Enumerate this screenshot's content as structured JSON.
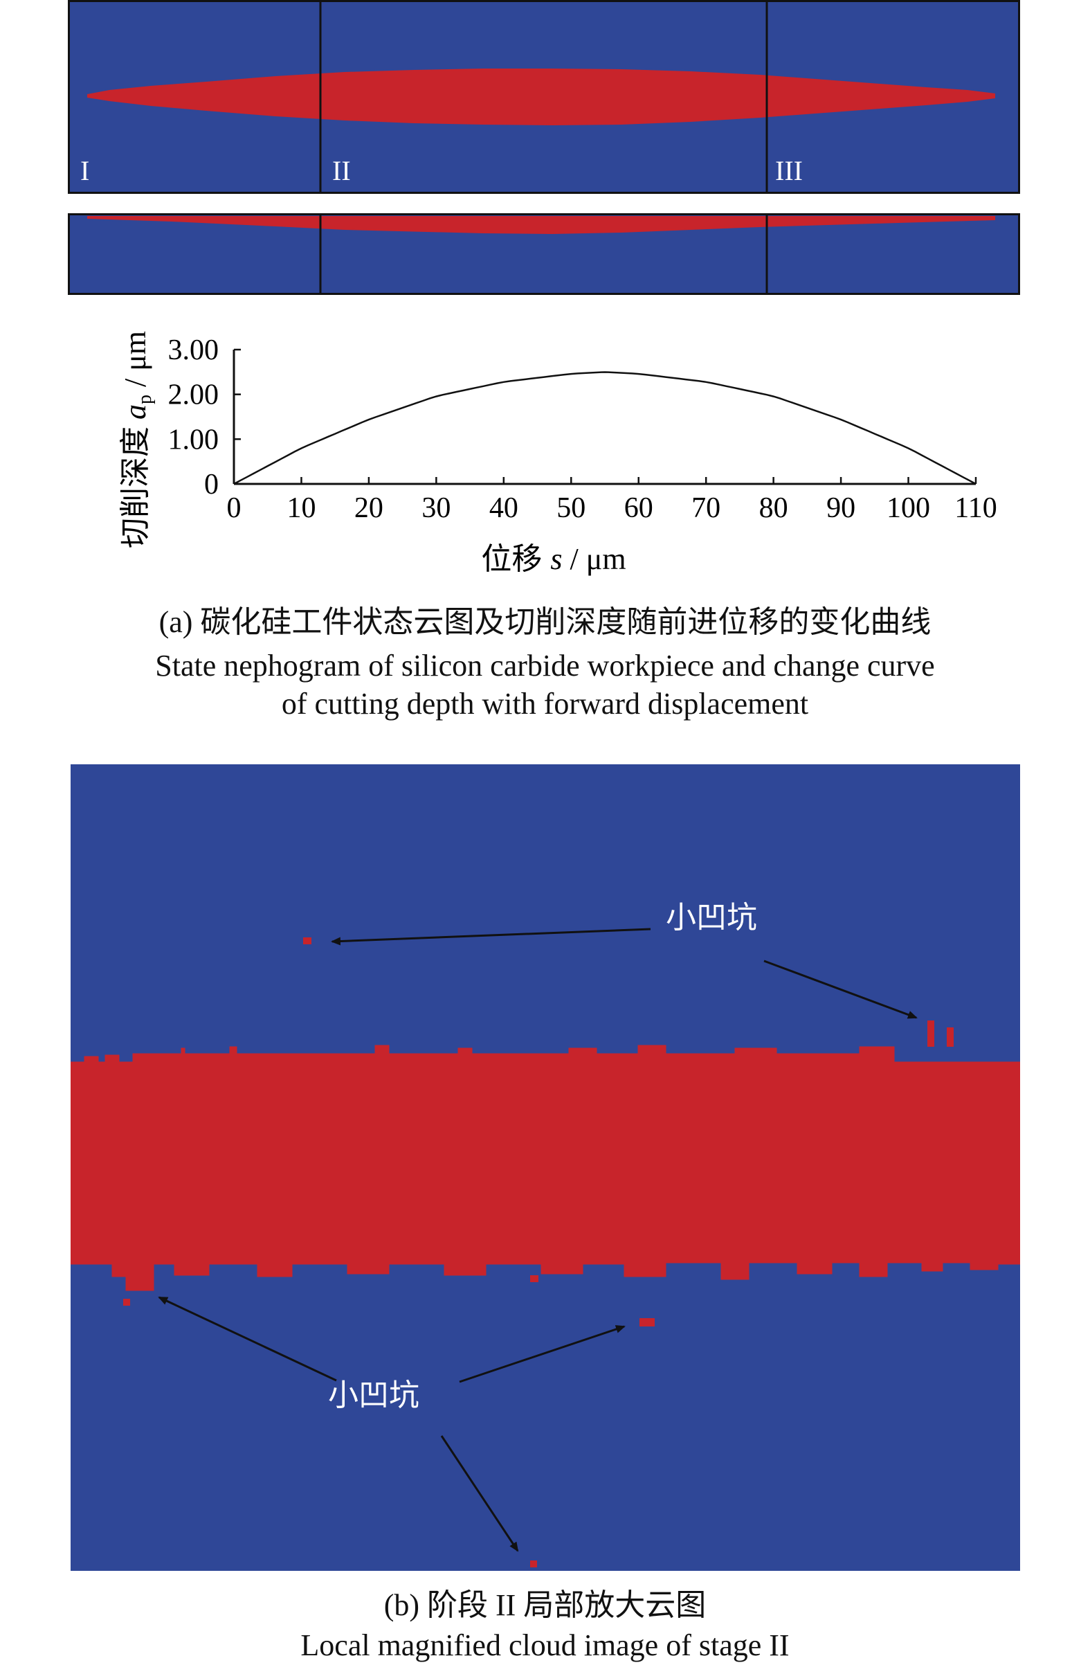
{
  "figure_a": {
    "panel_labels": [
      "I",
      "II",
      "III"
    ],
    "colors": {
      "workpiece": "#2F4797",
      "removed": "#C8242B",
      "frame": "#111111"
    },
    "chart_data": {
      "type": "line",
      "xlabel_prefix": "位移",
      "xlabel_var": "s",
      "xlabel_unit": " / μm",
      "ylabel_prefix": "切削深度",
      "ylabel_var": "a",
      "ylabel_sub": "p",
      "ylabel_unit": " / μm",
      "xlim": [
        0,
        110
      ],
      "ylim": [
        0,
        3
      ],
      "xticks": [
        0,
        10,
        20,
        30,
        40,
        50,
        60,
        70,
        80,
        90,
        100,
        110
      ],
      "yticks": [
        0,
        1,
        2,
        3
      ],
      "ytick_labels": [
        "0",
        "1.00",
        "2.00",
        "3.00"
      ],
      "series": [
        {
          "x": [
            0,
            10,
            20,
            30,
            40,
            50,
            55,
            60,
            70,
            80,
            90,
            100,
            110
          ],
          "values": [
            0,
            0.8,
            1.44,
            1.96,
            2.28,
            2.46,
            2.5,
            2.46,
            2.28,
            1.96,
            1.44,
            0.8,
            0
          ]
        }
      ],
      "grid": false
    },
    "caption_cn": "(a) 碳化硅工件状态云图及切削深度随前进位移的变化曲线",
    "caption_en_1": "State nephogram of silicon carbide workpiece and change curve",
    "caption_en_2": "of cutting depth with forward displacement"
  },
  "figure_b": {
    "annotation_label": "小凹坑",
    "caption_cn": "(b) 阶段 II 局部放大云图",
    "caption_en": "Local magnified cloud image of stage II"
  }
}
